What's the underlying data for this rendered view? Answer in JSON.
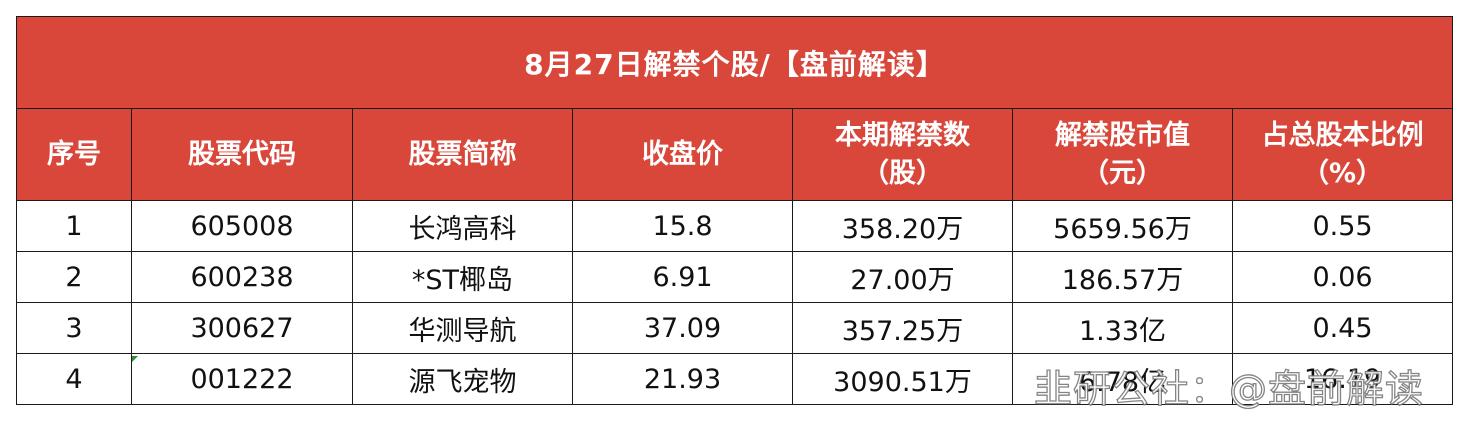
{
  "title": "8月27日解禁个股/【盘前解读】",
  "headers": {
    "seq": "序号",
    "code": "股票代码",
    "name": "股票简称",
    "close": "收盘价",
    "shares_line1": "本期解禁数",
    "shares_line2": "（股）",
    "value_line1": "解禁股市值",
    "value_line2": "（元）",
    "ratio_line1": "占总股本比例",
    "ratio_line2": "（%）"
  },
  "rows": [
    {
      "seq": "1",
      "code": "605008",
      "name": "长鸿高科",
      "close": "15.8",
      "shares": "358.20万",
      "value": "5659.56万",
      "ratio": "0.55"
    },
    {
      "seq": "2",
      "code": "600238",
      "name": "*ST椰岛",
      "close": "6.91",
      "shares": "27.00万",
      "value": "186.57万",
      "ratio": "0.06"
    },
    {
      "seq": "3",
      "code": "300627",
      "name": "华测导航",
      "close": "37.09",
      "shares": "357.25万",
      "value": "1.33亿",
      "ratio": "0.45"
    },
    {
      "seq": "4",
      "code": "001222",
      "name": "源飞宠物",
      "close": "21.93",
      "shares": "3090.51万",
      "value": "6.78亿",
      "ratio": "16.19"
    }
  ],
  "watermark": "韭研公社：@盘前解读",
  "colors": {
    "header_bg": "#d9473b",
    "header_text": "#ffffff",
    "grid_line": "#1a1a1a"
  }
}
